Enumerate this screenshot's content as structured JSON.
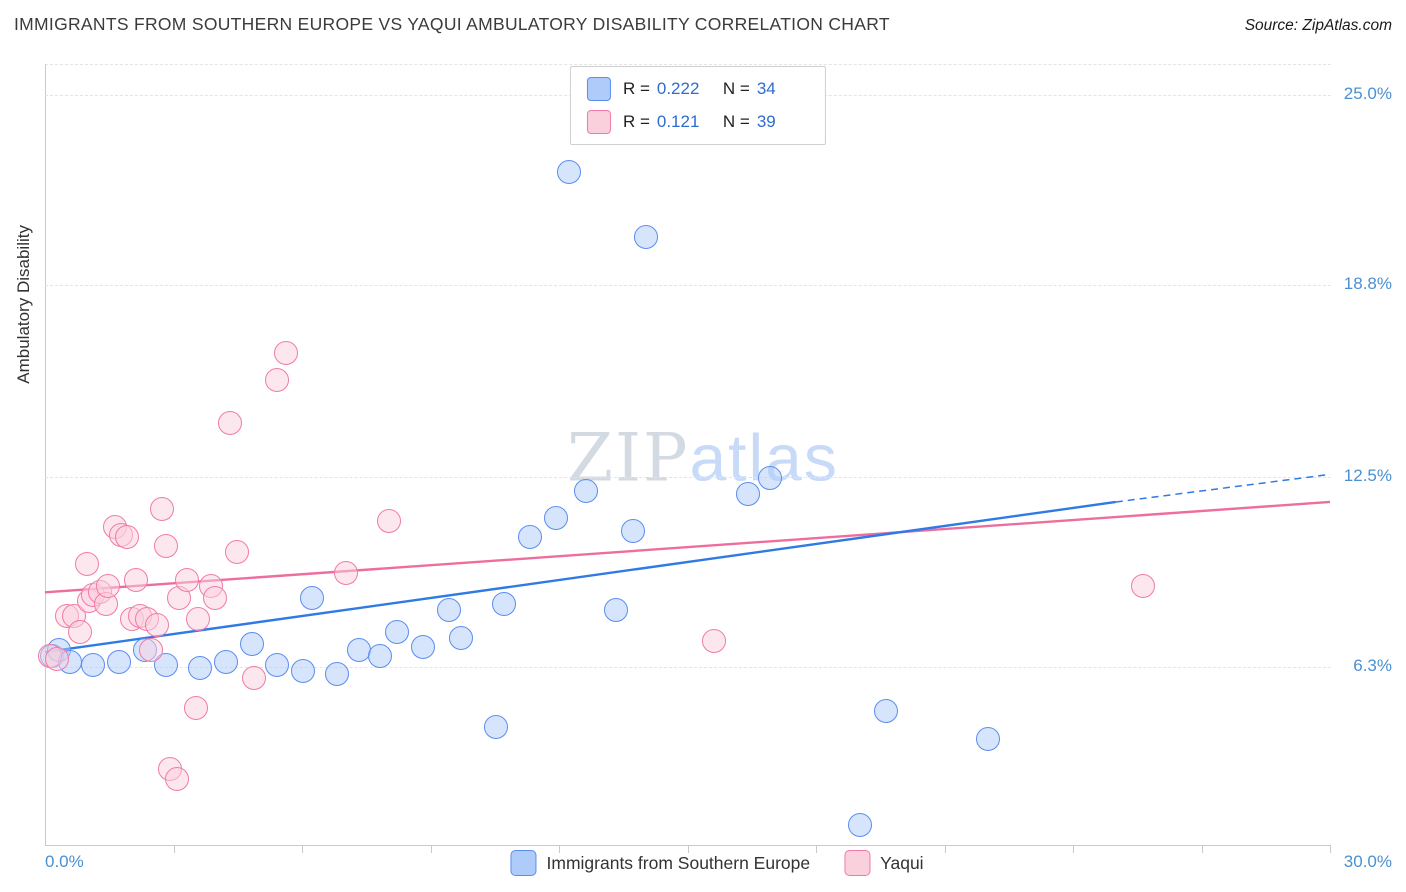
{
  "header": {
    "title": "IMMIGRANTS FROM SOUTHERN EUROPE VS YAQUI AMBULATORY DISABILITY CORRELATION CHART",
    "source": "Source: ZipAtlas.com"
  },
  "legend_box": {
    "rows": [
      {
        "r_label": "R =",
        "r": "0.222",
        "n_label": "N =",
        "n": "34"
      },
      {
        "r_label": "R =",
        "r": "0.121",
        "n_label": "N =",
        "n": "39"
      }
    ]
  },
  "watermark": {
    "part1": "ZIP",
    "part2": "atlas"
  },
  "y_axis": {
    "label": "Ambulatory Disability",
    "tick_labels": [
      "25.0%",
      "18.8%",
      "12.5%",
      "6.3%"
    ],
    "tick_values": [
      25.0,
      18.8,
      12.5,
      6.3
    ]
  },
  "x_axis": {
    "min_label": "0.0%",
    "max_label": "30.0%"
  },
  "bottom_legend": [
    {
      "label": "Immigrants from Southern Europe"
    },
    {
      "label": "Yaqui"
    }
  ],
  "colors": {
    "accent_text": "#2e6bd3",
    "axis_text": "#4a90d2",
    "blue_fill": "#aecbfa",
    "blue_border": "#5b8def",
    "pink_fill": "#fbd0dd",
    "pink_border": "#f07ba8",
    "blue_trend": "#2f7ae5",
    "pink_trend": "#ed6e9e"
  },
  "chart_data": {
    "type": "scatter",
    "title": "IMMIGRANTS FROM SOUTHERN EUROPE VS YAQUI AMBULATORY DISABILITY CORRELATION CHART",
    "xlabel": "",
    "ylabel": "Ambulatory Disability",
    "x_range": [
      0,
      30
    ],
    "y_range": [
      0.5,
      26
    ],
    "grid": "horizontal-dashed",
    "legend_position": "top-center",
    "series": [
      {
        "name": "Immigrants from Southern Europe",
        "R": 0.222,
        "N": 34,
        "fill": "#aecbfa",
        "border": "#5b8def",
        "points": [
          [
            0.15,
            6.7
          ],
          [
            0.3,
            6.9
          ],
          [
            0.55,
            6.5
          ],
          [
            1.1,
            6.4
          ],
          [
            1.7,
            6.5
          ],
          [
            2.3,
            6.9
          ],
          [
            2.8,
            6.4
          ],
          [
            3.6,
            6.3
          ],
          [
            4.2,
            6.5
          ],
          [
            4.8,
            7.1
          ],
          [
            5.4,
            6.4
          ],
          [
            6.0,
            6.2
          ],
          [
            6.2,
            8.6
          ],
          [
            6.8,
            6.1
          ],
          [
            7.3,
            6.9
          ],
          [
            7.8,
            6.7
          ],
          [
            8.2,
            7.5
          ],
          [
            8.8,
            7.0
          ],
          [
            9.4,
            8.2
          ],
          [
            9.7,
            7.3
          ],
          [
            10.5,
            4.4
          ],
          [
            10.7,
            8.4
          ],
          [
            11.3,
            10.6
          ],
          [
            11.9,
            11.2
          ],
          [
            12.2,
            22.5
          ],
          [
            12.6,
            12.1
          ],
          [
            13.3,
            8.2
          ],
          [
            13.7,
            10.8
          ],
          [
            14.0,
            20.4
          ],
          [
            16.4,
            12.0
          ],
          [
            16.9,
            12.5
          ],
          [
            19.0,
            1.2
          ],
          [
            19.6,
            4.9
          ],
          [
            22.0,
            4.0
          ]
        ]
      },
      {
        "name": "Yaqui",
        "R": 0.121,
        "N": 39,
        "fill": "#fbd0dd",
        "border": "#f07ba8",
        "points": [
          [
            0.1,
            6.7
          ],
          [
            0.25,
            6.6
          ],
          [
            0.5,
            8.0
          ],
          [
            0.65,
            8.0
          ],
          [
            0.8,
            7.5
          ],
          [
            0.95,
            9.7
          ],
          [
            1.0,
            8.5
          ],
          [
            1.1,
            8.7
          ],
          [
            1.25,
            8.8
          ],
          [
            1.4,
            8.4
          ],
          [
            1.45,
            9.0
          ],
          [
            1.6,
            10.9
          ],
          [
            1.75,
            10.65
          ],
          [
            1.9,
            10.6
          ],
          [
            2.0,
            7.9
          ],
          [
            2.1,
            9.2
          ],
          [
            2.2,
            8.0
          ],
          [
            2.35,
            7.9
          ],
          [
            2.45,
            6.9
          ],
          [
            2.6,
            7.7
          ],
          [
            2.7,
            11.5
          ],
          [
            2.8,
            10.3
          ],
          [
            2.9,
            3.0
          ],
          [
            3.05,
            2.7
          ],
          [
            3.1,
            8.6
          ],
          [
            3.3,
            9.2
          ],
          [
            3.5,
            5.0
          ],
          [
            3.55,
            7.9
          ],
          [
            3.85,
            9.0
          ],
          [
            3.95,
            8.6
          ],
          [
            4.3,
            14.3
          ],
          [
            4.45,
            10.1
          ],
          [
            4.85,
            6.0
          ],
          [
            5.4,
            15.7
          ],
          [
            5.6,
            16.6
          ],
          [
            7.0,
            9.4
          ],
          [
            8.0,
            11.1
          ],
          [
            15.6,
            7.2
          ],
          [
            25.6,
            9.0
          ]
        ]
      }
    ],
    "trend_lines": [
      {
        "series": "Immigrants from Southern Europe",
        "color": "#2f7ae5",
        "start": [
          0,
          6.8
        ],
        "solid_end": [
          25,
          11.7
        ],
        "end": [
          30,
          12.6
        ],
        "dashed_extension": true
      },
      {
        "series": "Yaqui",
        "color": "#ed6e9e",
        "start": [
          0,
          8.75
        ],
        "end": [
          30,
          11.7
        ]
      }
    ]
  }
}
